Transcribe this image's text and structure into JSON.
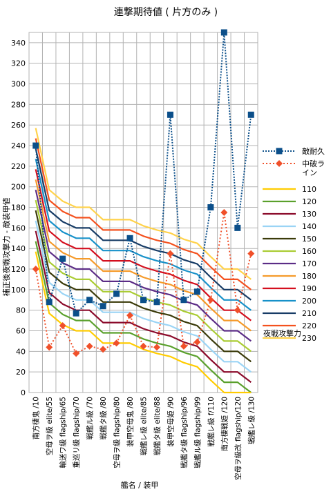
{
  "chart_data": {
    "type": "line",
    "title": "連撃期待値 ( 片方のみ )",
    "xlabel": "艦名 / 装甲",
    "ylabel": "補正後夜戦攻撃力 - 敵装甲値",
    "ylim": [
      0,
      350
    ],
    "yticks": [
      0,
      20,
      40,
      60,
      80,
      100,
      120,
      140,
      160,
      180,
      200,
      220,
      240,
      260,
      280,
      300,
      320,
      340
    ],
    "grid": true,
    "legend_position": "right",
    "legend_caption": "夜戦攻撃力",
    "categories": [
      "南方棲鬼 /10",
      "空母ヲ級 elite/55",
      "輸送ワ級 flagship/65",
      "重巡リ級 flagship/70",
      "戦艦ル級 /70",
      "戦艦タ級 /80",
      "空母ヲ級 flagship/80",
      "装甲空母鬼 /80",
      "戦艦レ級 elite/85",
      "戦艦タ級 elite/88",
      "装甲空母姫 /90",
      "戦艦タ級 flagship/96",
      "戦艦ル級 flagship/99",
      "戦艦レ級 f/110",
      "南方棲戦姫 /120",
      "空母ヲ級改 flagship/120",
      "戦艦レ級 /130"
    ],
    "series": [
      {
        "name": "敵耐久",
        "kind": "marker-square",
        "color": "#0b4f8a",
        "values": [
          240,
          88,
          130,
          77,
          90,
          84,
          96,
          150,
          90,
          88,
          270,
          90,
          98,
          180,
          350,
          160,
          270
        ]
      },
      {
        "name": "中破ライン",
        "kind": "marker-diamond",
        "color": "#f0502a",
        "values": [
          120,
          44,
          65,
          38,
          45,
          42,
          48,
          75,
          45,
          44,
          135,
          45,
          49,
          90,
          175,
          80,
          135
        ]
      },
      {
        "name": "110",
        "color": "#ffcc00",
        "values": [
          137,
          77,
          66,
          60,
          60,
          48,
          48,
          48,
          42,
          38,
          35,
          29,
          25,
          12,
          0,
          0,
          0
        ]
      },
      {
        "name": "120",
        "color": "#5aa02c",
        "values": [
          147,
          87,
          76,
          70,
          70,
          58,
          58,
          58,
          52,
          48,
          45,
          39,
          35,
          22,
          10,
          10,
          0
        ]
      },
      {
        "name": "130",
        "color": "#8b0a2a",
        "values": [
          157,
          97,
          86,
          80,
          80,
          68,
          68,
          68,
          62,
          58,
          55,
          49,
          45,
          32,
          20,
          20,
          10
        ]
      },
      {
        "name": "140",
        "color": "#9ad4f5",
        "values": [
          167,
          107,
          96,
          90,
          90,
          78,
          78,
          78,
          72,
          68,
          65,
          59,
          55,
          42,
          30,
          30,
          20
        ]
      },
      {
        "name": "150",
        "color": "#3b3b0a",
        "values": [
          177,
          117,
          106,
          100,
          100,
          88,
          88,
          88,
          82,
          78,
          75,
          69,
          65,
          52,
          40,
          40,
          30
        ]
      },
      {
        "name": "160",
        "color": "#aacc33",
        "values": [
          187,
          127,
          116,
          110,
          110,
          98,
          98,
          98,
          92,
          88,
          85,
          79,
          75,
          62,
          50,
          50,
          40
        ]
      },
      {
        "name": "170",
        "color": "#5b2c86",
        "values": [
          197,
          137,
          126,
          120,
          120,
          108,
          108,
          108,
          102,
          98,
          95,
          89,
          85,
          72,
          60,
          60,
          50
        ]
      },
      {
        "name": "180",
        "color": "#f59a2a",
        "values": [
          207,
          147,
          136,
          130,
          130,
          118,
          118,
          118,
          112,
          108,
          105,
          99,
          95,
          82,
          70,
          70,
          60
        ]
      },
      {
        "name": "190",
        "color": "#d40f1e",
        "values": [
          217,
          157,
          146,
          140,
          140,
          128,
          128,
          128,
          122,
          118,
          115,
          109,
          105,
          92,
          80,
          80,
          70
        ]
      },
      {
        "name": "200",
        "color": "#1791c9",
        "values": [
          227,
          167,
          156,
          150,
          150,
          138,
          138,
          138,
          132,
          128,
          125,
          119,
          115,
          102,
          90,
          90,
          80
        ]
      },
      {
        "name": "210",
        "color": "#173c66",
        "values": [
          237,
          177,
          166,
          160,
          160,
          148,
          148,
          148,
          142,
          138,
          135,
          129,
          125,
          112,
          100,
          100,
          90
        ]
      },
      {
        "name": "220",
        "color": "#f4511e",
        "values": [
          247,
          187,
          176,
          170,
          170,
          158,
          158,
          158,
          152,
          148,
          145,
          139,
          135,
          122,
          110,
          110,
          100
        ]
      },
      {
        "name": "230",
        "color": "#ffd24a",
        "values": [
          257,
          197,
          186,
          180,
          180,
          168,
          168,
          168,
          162,
          158,
          155,
          149,
          145,
          132,
          120,
          120,
          110
        ]
      }
    ]
  }
}
